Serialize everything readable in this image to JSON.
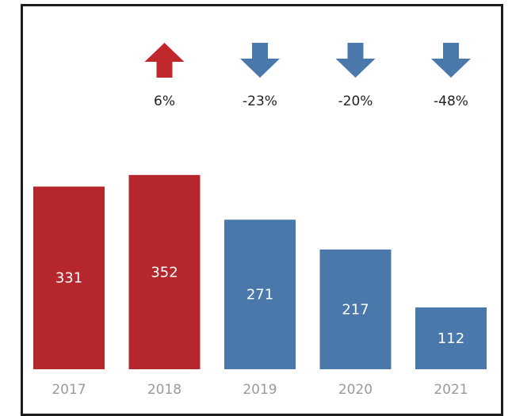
{
  "chart_data": {
    "type": "bar",
    "categories": [
      "2017",
      "2018",
      "2019",
      "2020",
      "2021"
    ],
    "values": [
      331,
      352,
      271,
      217,
      112
    ],
    "changes": [
      {
        "label": "",
        "direction": "none"
      },
      {
        "label": "6%",
        "direction": "up"
      },
      {
        "label": "-23%",
        "direction": "down"
      },
      {
        "label": "-20%",
        "direction": "down"
      },
      {
        "label": "-48%",
        "direction": "down"
      }
    ],
    "bar_colors": [
      "#b5272c",
      "#b5272c",
      "#4a78aa",
      "#4a78aa",
      "#4a78aa"
    ],
    "colors": {
      "increase": "#c0282d",
      "decrease": "#4a78aa",
      "value_label": "#ffffff",
      "tick_label": "#9a9a9a",
      "change_label": "#222222"
    },
    "grid": false,
    "legend": "none",
    "ylim": [
      0,
      400
    ]
  }
}
